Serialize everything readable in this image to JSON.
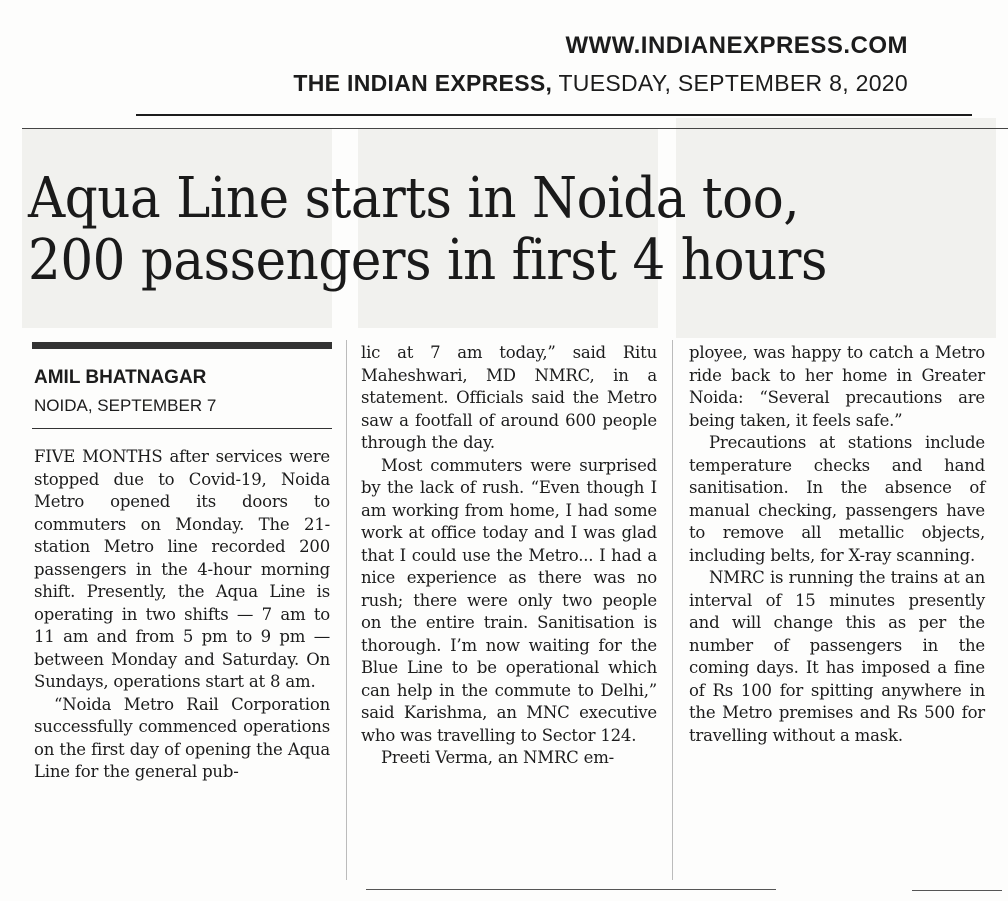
{
  "masthead": {
    "site_url": "WWW.INDIANEXPRESS.COM",
    "paper_name": "THE INDIAN EXPRESS,",
    "date": "TUESDAY, SEPTEMBER 8, 2020"
  },
  "article": {
    "headline_line1": "Aqua Line starts in Noida too,",
    "headline_line2": "200 passengers in first 4 hours",
    "author": "AMIL BHATNAGAR",
    "dateline": "NOIDA, SEPTEMBER 7",
    "col1": [
      "FIVE MONTHS after services were stopped due to Covid-19, Noida Metro opened its doors to commuters on Monday. The 21-station Metro line recorded 200 passengers in the 4-hour morning shift. Presently, the Aqua Line is operating in two shifts — 7 am to 11 am and from 5 pm to 9 pm — between Monday and Saturday. On Sundays, operations start at 8 am.",
      "“Noida Metro Rail Corporation successfully commenced operations on the first day of opening the Aqua Line for the general pub-"
    ],
    "col2": [
      "lic at 7 am today,” said Ritu Maheshwari, MD NMRC, in a statement. Officials said the Metro saw a footfall of around 600 people through the day.",
      "Most commuters were surprised by the lack of rush. “Even though I am working from home, I had some work at office today and I was glad that I could use the Metro... I had a nice experience as there was no rush; there were only two people on the entire train. Sanitisation is thorough. I’m now waiting for the Blue Line to be operational which can help in the commute to Delhi,” said Karishma, an MNC executive who was travelling to Sector 124.",
      "Preeti Verma, an NMRC em-"
    ],
    "col3": [
      "ployee, was happy to catch a Metro ride back to her home in Greater Noida: “Several precautions are being taken, it feels safe.”",
      "Precautions at stations include temperature checks and hand sanitisation. In the absence of manual checking, passengers have to remove all metallic objects, including belts, for X-ray scanning.",
      "NMRC is running the trains at an interval of 15 minutes presently and will change this as per the number of passengers in the coming days. It has imposed a fine of Rs 100 for spitting anywhere in the Metro premises and Rs 500 for travelling without a mask."
    ]
  }
}
